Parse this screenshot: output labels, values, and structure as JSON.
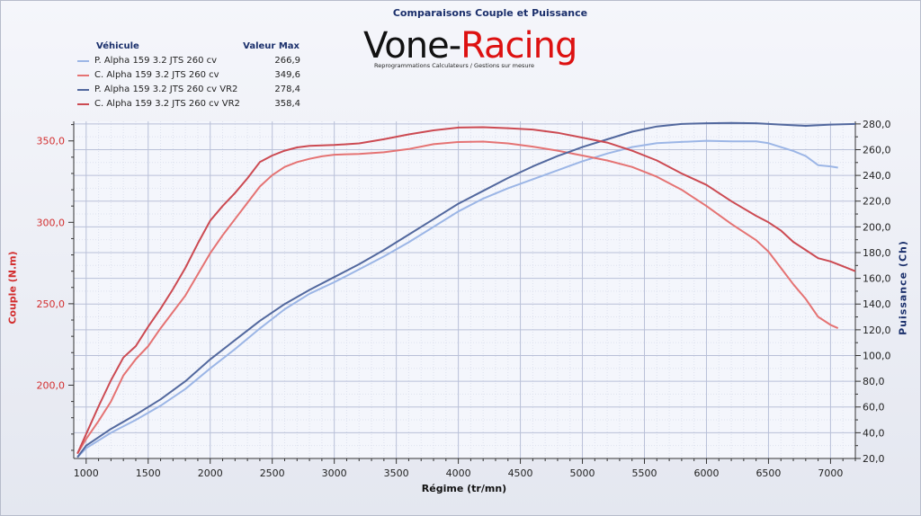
{
  "chart_data": {
    "type": "line",
    "title": "Comparaisons Couple et Puissance",
    "xlabel": "Régime (tr/mn)",
    "ylabel_left": "Couple (N.m)",
    "ylabel_right": "Puissance (Ch)",
    "xlim": [
      900,
      7200
    ],
    "ylim_left": [
      155,
      362
    ],
    "ylim_right": [
      20,
      282
    ],
    "x_ticks": [
      "1000",
      "1500",
      "2000",
      "2500",
      "3000",
      "3500",
      "4000",
      "4500",
      "5000",
      "5500",
      "6000",
      "6500",
      "7000"
    ],
    "y_left_ticks": [
      "200,0",
      "250,0",
      "300,0",
      "350,0"
    ],
    "y_right_ticks": [
      "20,0",
      "40,0",
      "60,0",
      "80,0",
      "100,0",
      "120,0",
      "140,0",
      "160,0",
      "180,0",
      "200,0",
      "220,0",
      "240,0",
      "260,0",
      "280,0"
    ],
    "grid": true,
    "legend_header": {
      "name": "Véhicule",
      "value": "Valeur Max"
    },
    "series": [
      {
        "name": "P. Alpha 159 3.2 JTS 260 cv",
        "max": "266,9",
        "axis": "right",
        "color": "#9cb6e6",
        "points": [
          [
            930,
            21
          ],
          [
            1000,
            28
          ],
          [
            1200,
            40
          ],
          [
            1400,
            50
          ],
          [
            1600,
            61
          ],
          [
            1800,
            74
          ],
          [
            2000,
            90
          ],
          [
            2200,
            105
          ],
          [
            2400,
            121
          ],
          [
            2600,
            136
          ],
          [
            2800,
            148
          ],
          [
            3000,
            157
          ],
          [
            3200,
            167
          ],
          [
            3400,
            177
          ],
          [
            3600,
            188
          ],
          [
            3800,
            200
          ],
          [
            4000,
            212
          ],
          [
            4200,
            222
          ],
          [
            4400,
            230
          ],
          [
            4600,
            237
          ],
          [
            4800,
            244
          ],
          [
            5000,
            251
          ],
          [
            5200,
            257
          ],
          [
            5400,
            262
          ],
          [
            5600,
            265
          ],
          [
            5800,
            266
          ],
          [
            6000,
            266.9
          ],
          [
            6200,
            266.5
          ],
          [
            6400,
            266.5
          ],
          [
            6500,
            265
          ],
          [
            6700,
            259
          ],
          [
            6800,
            255
          ],
          [
            6900,
            248
          ],
          [
            7000,
            247
          ],
          [
            7060,
            246
          ]
        ]
      },
      {
        "name": "C. Alpha 159 3.2 JTS 260 cv",
        "max": "349,6",
        "axis": "left",
        "color": "#e57373",
        "points": [
          [
            930,
            158
          ],
          [
            1000,
            167
          ],
          [
            1100,
            178
          ],
          [
            1200,
            190
          ],
          [
            1300,
            206
          ],
          [
            1400,
            216
          ],
          [
            1500,
            224
          ],
          [
            1600,
            235
          ],
          [
            1700,
            245
          ],
          [
            1800,
            255
          ],
          [
            1900,
            268
          ],
          [
            2000,
            281
          ],
          [
            2100,
            292
          ],
          [
            2200,
            302
          ],
          [
            2300,
            312
          ],
          [
            2400,
            322
          ],
          [
            2500,
            329
          ],
          [
            2600,
            334
          ],
          [
            2700,
            337
          ],
          [
            2800,
            339
          ],
          [
            2900,
            340.5
          ],
          [
            3000,
            341.5
          ],
          [
            3200,
            342
          ],
          [
            3400,
            343
          ],
          [
            3600,
            345
          ],
          [
            3800,
            348
          ],
          [
            4000,
            349.3
          ],
          [
            4200,
            349.6
          ],
          [
            4400,
            348.5
          ],
          [
            4600,
            346.5
          ],
          [
            4800,
            344
          ],
          [
            5000,
            341
          ],
          [
            5200,
            338
          ],
          [
            5400,
            334
          ],
          [
            5600,
            328
          ],
          [
            5800,
            320
          ],
          [
            6000,
            310
          ],
          [
            6200,
            299
          ],
          [
            6400,
            289
          ],
          [
            6500,
            282
          ],
          [
            6600,
            272
          ],
          [
            6700,
            262
          ],
          [
            6800,
            253
          ],
          [
            6900,
            242
          ],
          [
            7000,
            237
          ],
          [
            7060,
            235
          ]
        ]
      },
      {
        "name": "P. Alpha 159 3.2 JTS 260 cv VR2",
        "max": "278,4",
        "axis": "right",
        "color": "#52689e",
        "points": [
          [
            930,
            21
          ],
          [
            1000,
            30
          ],
          [
            1200,
            43
          ],
          [
            1400,
            54
          ],
          [
            1600,
            66
          ],
          [
            1800,
            80
          ],
          [
            2000,
            97
          ],
          [
            2200,
            112
          ],
          [
            2400,
            127
          ],
          [
            2600,
            140
          ],
          [
            2800,
            151
          ],
          [
            3000,
            161
          ],
          [
            3200,
            171
          ],
          [
            3400,
            182
          ],
          [
            3600,
            194
          ],
          [
            3800,
            206
          ],
          [
            4000,
            218
          ],
          [
            4200,
            228
          ],
          [
            4400,
            238
          ],
          [
            4600,
            247
          ],
          [
            4800,
            255
          ],
          [
            5000,
            262
          ],
          [
            5200,
            268
          ],
          [
            5400,
            274
          ],
          [
            5600,
            278
          ],
          [
            5800,
            280
          ],
          [
            6000,
            280.5
          ],
          [
            6200,
            280.8
          ],
          [
            6400,
            280.5
          ],
          [
            6600,
            279.5
          ],
          [
            6800,
            278.5
          ],
          [
            7000,
            279.5
          ],
          [
            7200,
            280
          ]
        ]
      },
      {
        "name": "C. Alpha 159 3.2 JTS 260 cv VR2",
        "max": "358,4",
        "axis": "left",
        "color": "#cc4a52",
        "points": [
          [
            930,
            158
          ],
          [
            1000,
            170
          ],
          [
            1100,
            187
          ],
          [
            1200,
            203
          ],
          [
            1300,
            217
          ],
          [
            1400,
            224
          ],
          [
            1500,
            236
          ],
          [
            1600,
            247
          ],
          [
            1700,
            259
          ],
          [
            1800,
            272
          ],
          [
            1900,
            287
          ],
          [
            2000,
            301
          ],
          [
            2100,
            310
          ],
          [
            2200,
            318
          ],
          [
            2300,
            327
          ],
          [
            2400,
            337
          ],
          [
            2500,
            341
          ],
          [
            2600,
            344
          ],
          [
            2700,
            346
          ],
          [
            2800,
            347
          ],
          [
            3000,
            347.5
          ],
          [
            3200,
            348.5
          ],
          [
            3400,
            351
          ],
          [
            3600,
            354
          ],
          [
            3800,
            356.5
          ],
          [
            4000,
            358.2
          ],
          [
            4200,
            358.4
          ],
          [
            4400,
            357.8
          ],
          [
            4600,
            357
          ],
          [
            4800,
            355
          ],
          [
            5000,
            352
          ],
          [
            5200,
            349
          ],
          [
            5400,
            344
          ],
          [
            5600,
            338
          ],
          [
            5800,
            330
          ],
          [
            6000,
            323
          ],
          [
            6200,
            313
          ],
          [
            6400,
            304
          ],
          [
            6500,
            300
          ],
          [
            6600,
            295
          ],
          [
            6700,
            288
          ],
          [
            6800,
            283
          ],
          [
            6900,
            278
          ],
          [
            7000,
            276
          ],
          [
            7100,
            273
          ],
          [
            7200,
            270
          ]
        ]
      }
    ]
  },
  "logo": {
    "text_a": "Vone-",
    "text_b": "Racing",
    "tagline": "Reprogrammations Calculateurs / Gestions sur mesure"
  }
}
